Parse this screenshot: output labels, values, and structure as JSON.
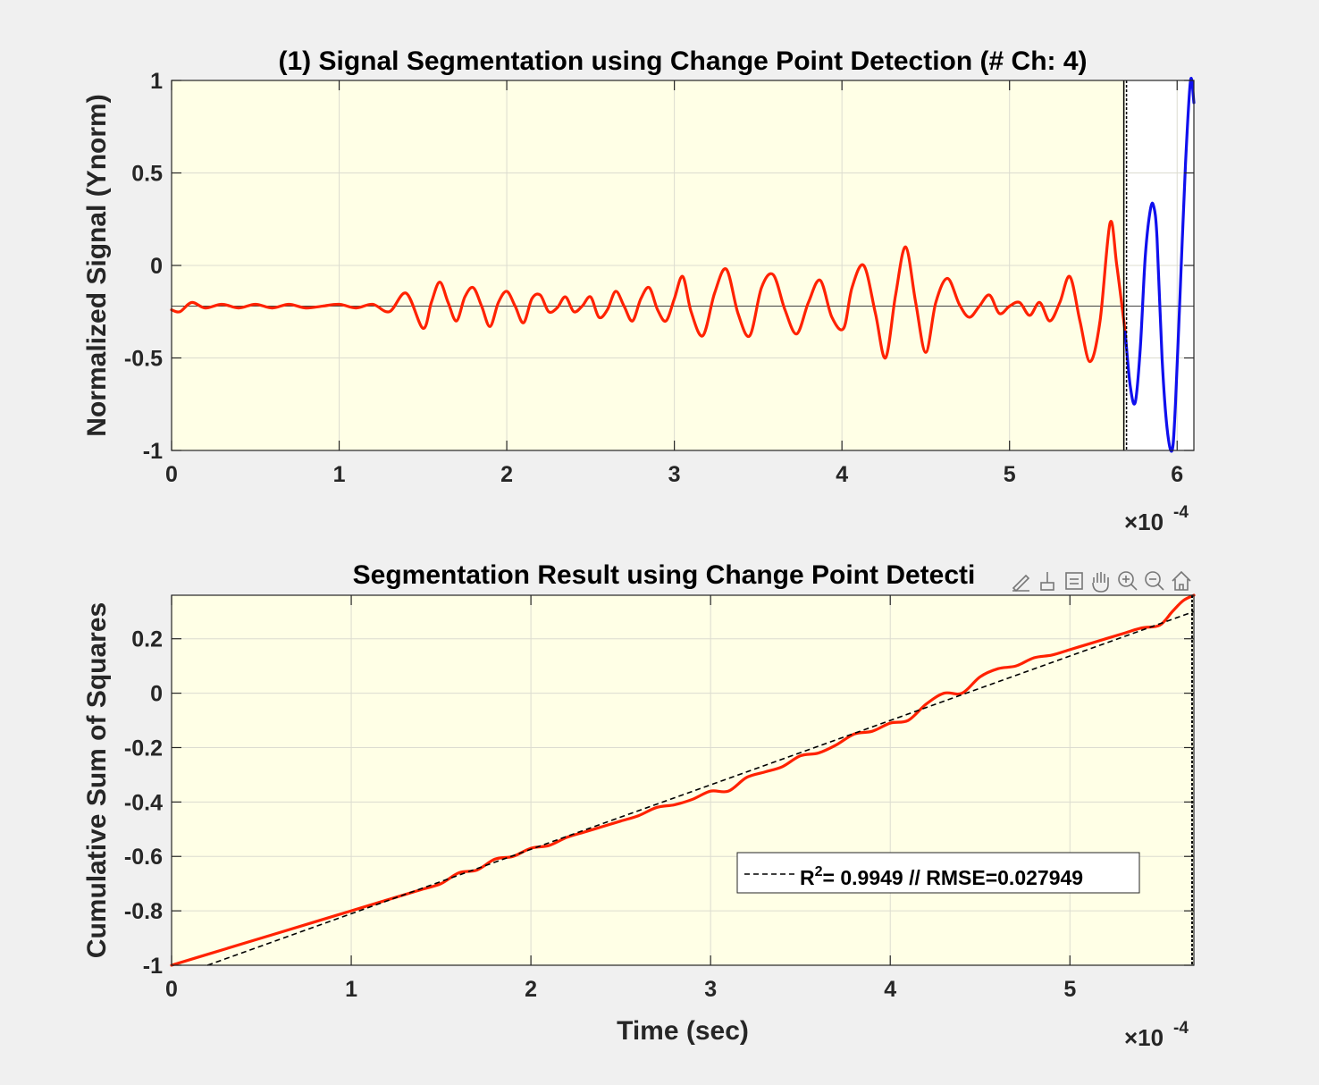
{
  "chart_data": [
    {
      "type": "line",
      "title": "(1) Signal Segmentation using Change Point Detection (# Ch: 4)",
      "xlabel": "",
      "ylabel": "Normalized Signal (Ynorm)",
      "x_exponent_label": "×10",
      "x_exponent": "-4",
      "xlim": [
        0,
        6.1
      ],
      "ylim": [
        -1,
        1
      ],
      "xticks": [
        "0",
        "1",
        "2",
        "3",
        "4",
        "5",
        "6"
      ],
      "yticks": [
        "1",
        "0.5",
        "0",
        "-0.5",
        "-1"
      ],
      "grid": true,
      "background_color": "#ffffe6",
      "change_point_x": 5.69,
      "mean_line_y": -0.22,
      "series": [
        {
          "color": "#ff2200",
          "x": [
            0,
            0.05,
            0.12,
            0.2,
            0.3,
            0.4,
            0.5,
            0.6,
            0.7,
            0.8,
            0.9,
            1.0,
            1.1,
            1.2,
            1.3,
            1.4,
            1.5,
            1.55,
            1.6,
            1.65,
            1.7,
            1.75,
            1.8,
            1.85,
            1.9,
            1.95,
            2.0,
            2.05,
            2.1,
            2.15,
            2.2,
            2.25,
            2.3,
            2.35,
            2.4,
            2.45,
            2.5,
            2.55,
            2.6,
            2.65,
            2.7,
            2.75,
            2.8,
            2.85,
            2.9,
            2.95,
            3.0,
            3.05,
            3.1,
            3.17,
            3.24,
            3.31,
            3.38,
            3.45,
            3.52,
            3.59,
            3.66,
            3.73,
            3.8,
            3.87,
            3.94,
            4.01,
            4.06,
            4.13,
            4.2,
            4.26,
            4.32,
            4.38,
            4.44,
            4.5,
            4.56,
            4.63,
            4.7,
            4.76,
            4.82,
            4.88,
            4.94,
            5.0,
            5.06,
            5.12,
            5.18,
            5.24,
            5.3,
            5.36,
            5.42,
            5.48,
            5.54,
            5.6,
            5.64,
            5.69
          ],
          "y": [
            -0.24,
            -0.25,
            -0.2,
            -0.23,
            -0.21,
            -0.23,
            -0.21,
            -0.23,
            -0.21,
            -0.23,
            -0.22,
            -0.21,
            -0.23,
            -0.21,
            -0.25,
            -0.15,
            -0.34,
            -0.2,
            -0.09,
            -0.2,
            -0.3,
            -0.17,
            -0.12,
            -0.22,
            -0.33,
            -0.2,
            -0.14,
            -0.22,
            -0.31,
            -0.18,
            -0.16,
            -0.25,
            -0.23,
            -0.17,
            -0.25,
            -0.22,
            -0.17,
            -0.28,
            -0.24,
            -0.14,
            -0.22,
            -0.3,
            -0.18,
            -0.12,
            -0.24,
            -0.3,
            -0.18,
            -0.06,
            -0.25,
            -0.38,
            -0.15,
            -0.02,
            -0.26,
            -0.38,
            -0.12,
            -0.05,
            -0.24,
            -0.37,
            -0.2,
            -0.08,
            -0.28,
            -0.34,
            -0.12,
            0.0,
            -0.26,
            -0.5,
            -0.16,
            0.1,
            -0.2,
            -0.47,
            -0.2,
            -0.07,
            -0.21,
            -0.28,
            -0.22,
            -0.16,
            -0.26,
            -0.22,
            -0.2,
            -0.27,
            -0.2,
            -0.3,
            -0.2,
            -0.06,
            -0.3,
            -0.52,
            -0.3,
            0.23,
            0.0,
            -0.36
          ]
        },
        {
          "color": "#1010ee",
          "x": [
            5.69,
            5.72,
            5.75,
            5.78,
            5.81,
            5.84,
            5.86,
            5.88,
            5.91,
            5.94,
            5.97,
            5.99,
            6.02,
            6.05,
            6.08,
            6.1
          ],
          "y": [
            -0.36,
            -0.65,
            -0.74,
            -0.45,
            0.05,
            0.3,
            0.32,
            0.15,
            -0.5,
            -0.88,
            -1.0,
            -0.75,
            -0.1,
            0.55,
            1.0,
            0.88
          ]
        }
      ]
    },
    {
      "type": "line",
      "title": "Segmentation Result using Change Point Detecti",
      "xlabel": "Time (sec)",
      "ylabel": "Cumulative Sum of Squares",
      "x_exponent_label": "×10",
      "x_exponent": "-4",
      "xlim": [
        0,
        5.69
      ],
      "ylim": [
        -1,
        0.36
      ],
      "xticks": [
        "0",
        "1",
        "2",
        "3",
        "4",
        "5"
      ],
      "yticks": [
        "0.2",
        "0",
        "-0.2",
        "-0.4",
        "-0.6",
        "-0.8",
        "-1"
      ],
      "grid": true,
      "background_color": "#ffffe6",
      "legend": {
        "label_prefix": "R",
        "label_sup": "2",
        "label_rest": "= 0.9949 // RMSE=0.027949",
        "placement": "lower-right"
      },
      "series": [
        {
          "color": "#ff2200",
          "x": [
            0,
            0.2,
            0.4,
            0.6,
            0.8,
            1.0,
            1.2,
            1.4,
            1.5,
            1.6,
            1.7,
            1.8,
            1.9,
            2.0,
            2.1,
            2.2,
            2.3,
            2.4,
            2.5,
            2.6,
            2.7,
            2.8,
            2.9,
            3.0,
            3.1,
            3.2,
            3.3,
            3.4,
            3.5,
            3.6,
            3.7,
            3.8,
            3.9,
            4.0,
            4.1,
            4.2,
            4.3,
            4.4,
            4.5,
            4.6,
            4.7,
            4.8,
            4.9,
            5.0,
            5.1,
            5.2,
            5.3,
            5.4,
            5.5,
            5.57,
            5.63,
            5.69
          ],
          "y": [
            -1.0,
            -0.96,
            -0.92,
            -0.88,
            -0.84,
            -0.8,
            -0.76,
            -0.72,
            -0.7,
            -0.66,
            -0.65,
            -0.61,
            -0.6,
            -0.57,
            -0.56,
            -0.53,
            -0.51,
            -0.49,
            -0.47,
            -0.45,
            -0.42,
            -0.41,
            -0.39,
            -0.36,
            -0.36,
            -0.31,
            -0.29,
            -0.27,
            -0.23,
            -0.22,
            -0.19,
            -0.15,
            -0.14,
            -0.11,
            -0.1,
            -0.04,
            0.0,
            0.0,
            0.06,
            0.09,
            0.1,
            0.13,
            0.14,
            0.16,
            0.18,
            0.2,
            0.22,
            0.24,
            0.25,
            0.3,
            0.34,
            0.36
          ]
        },
        {
          "color": "#000000",
          "dash": true,
          "x": [
            0.2,
            5.69
          ],
          "y": [
            -1.0,
            0.3
          ]
        }
      ]
    }
  ],
  "toolbar": {
    "icons": [
      "edit-icon",
      "brush-icon",
      "datatip-icon",
      "pan-hand-icon",
      "zoom-in-icon",
      "zoom-out-icon",
      "home-icon"
    ]
  }
}
